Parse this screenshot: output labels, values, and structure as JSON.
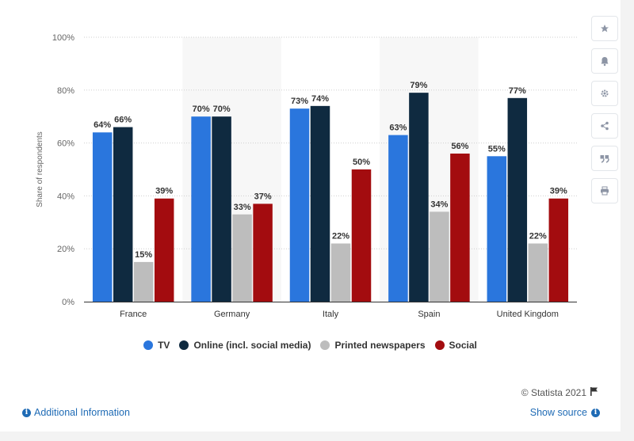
{
  "chart_data": {
    "type": "bar",
    "categories": [
      "France",
      "Germany",
      "Italy",
      "Spain",
      "United Kingdom"
    ],
    "series": [
      {
        "name": "TV",
        "color": "#2a76dd",
        "values": [
          64,
          70,
          73,
          63,
          55
        ]
      },
      {
        "name": "Online (incl. social media)",
        "color": "#0f2a40",
        "values": [
          66,
          70,
          74,
          79,
          77
        ]
      },
      {
        "name": "Printed newspapers",
        "color": "#bdbdbd",
        "values": [
          15,
          33,
          22,
          34,
          22
        ]
      },
      {
        "name": "Social",
        "color": "#a30c0f",
        "values": [
          39,
          37,
          50,
          56,
          39
        ]
      }
    ],
    "ylabel": "Share of respondents",
    "ylim": [
      0,
      100
    ],
    "yticks": [
      "0%",
      "20%",
      "40%",
      "60%",
      "80%",
      "100%"
    ],
    "value_suffix": "%",
    "grid": true,
    "legend_position": "bottom"
  },
  "footer": {
    "credit": "© Statista 2021",
    "additional_info": "Additional Information",
    "show_source": "Show source"
  },
  "sidebar": {
    "icons": [
      "star-icon",
      "bell-icon",
      "gear-icon",
      "share-icon",
      "quote-icon",
      "print-icon"
    ]
  }
}
